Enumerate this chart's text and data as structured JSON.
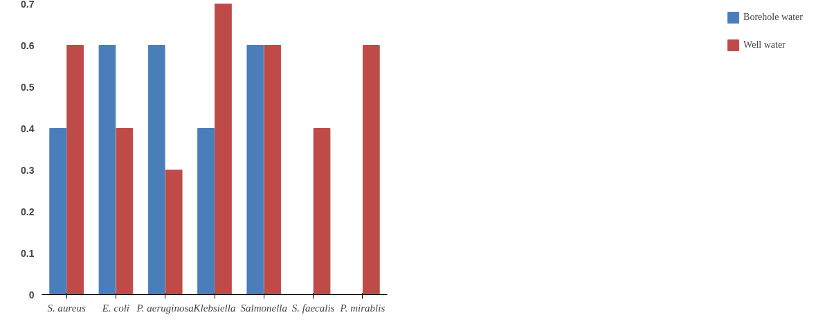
{
  "chart_data": {
    "type": "bar",
    "categories": [
      "S. aureus",
      "E. coli",
      "P. aeruginosa",
      "Klebsiella",
      "Salmonella",
      "S. faecalis",
      "P. mirablis"
    ],
    "series": [
      {
        "name": "Borehole water",
        "color": "#4a7ebb",
        "values": [
          0.4,
          0.6,
          0.6,
          0.4,
          0.6,
          null,
          null
        ]
      },
      {
        "name": "Well water",
        "color": "#be4b48",
        "values": [
          0.6,
          0.4,
          0.3,
          0.7,
          0.6,
          0.4,
          0.6
        ]
      }
    ],
    "ylim": [
      0,
      0.7
    ],
    "yticks": [
      0,
      0.1,
      0.2,
      0.3,
      0.4,
      0.5,
      0.6,
      0.7
    ],
    "grid": false,
    "legend": "right"
  }
}
